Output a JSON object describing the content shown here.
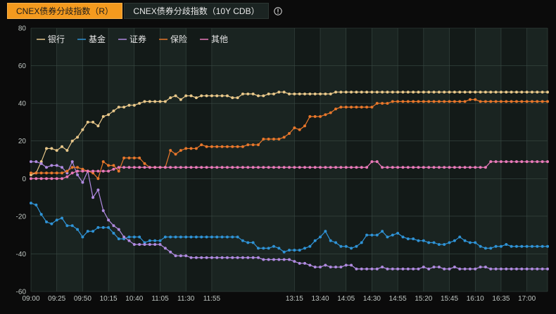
{
  "tabs": [
    {
      "label": "CNEX债券分歧指数（R）",
      "active": true
    },
    {
      "label": "CNEX债券分歧指数（10Y CDB）",
      "active": false
    }
  ],
  "info_icon": "info-circle-icon",
  "chart_data": {
    "type": "line",
    "title": "",
    "xlabel": "",
    "ylabel": "",
    "ylim": [
      -60,
      80
    ],
    "yticks": [
      80,
      60,
      40,
      20,
      0,
      -20,
      -40,
      -60
    ],
    "x_start": "09:00",
    "x_end": "17:20",
    "x_interval_minutes": 5,
    "xticks": [
      "09:00",
      "09:25",
      "09:50",
      "10:15",
      "10:40",
      "11:05",
      "11:30",
      "11:55",
      "13:15",
      "13:40",
      "14:05",
      "14:30",
      "14:55",
      "15:20",
      "15:45",
      "16:10",
      "16:35",
      "17:00"
    ],
    "grid": true,
    "legend_position": "top-left",
    "series": [
      {
        "name": "银行",
        "color": "#e9c88a",
        "values": [
          2,
          3,
          9,
          16,
          16,
          15,
          17,
          15,
          20,
          22,
          26,
          30,
          30,
          28,
          33,
          34,
          36,
          38,
          38,
          39,
          39,
          40,
          41,
          41,
          41,
          41,
          41,
          43,
          44,
          42,
          44,
          44,
          43,
          44,
          44,
          44,
          44,
          44,
          44,
          43,
          43,
          45,
          45,
          45,
          44,
          44,
          45,
          45,
          46,
          46,
          45,
          45,
          45,
          45,
          45,
          45,
          45,
          45,
          45,
          46,
          46,
          46,
          46,
          46,
          46,
          46,
          46,
          46,
          46,
          46,
          46,
          46,
          46,
          46,
          46,
          46,
          46,
          46,
          46,
          46,
          46,
          46,
          46,
          46,
          46,
          46,
          46,
          46,
          46,
          46,
          46,
          46,
          46,
          46,
          46,
          46,
          46,
          46,
          46,
          46,
          46
        ]
      },
      {
        "name": "基金",
        "color": "#2f93d6",
        "values": [
          -13,
          -14,
          -19,
          -23,
          -24,
          -22,
          -21,
          -25,
          -25,
          -27,
          -31,
          -28,
          -28,
          -26,
          -26,
          -26,
          -29,
          -32,
          -32,
          -31,
          -31,
          -31,
          -34,
          -33,
          -33,
          -33,
          -31,
          -31,
          -31,
          -31,
          -31,
          -31,
          -31,
          -31,
          -31,
          -31,
          -31,
          -31,
          -31,
          -31,
          -31,
          -33,
          -34,
          -34,
          -37,
          -37,
          -37,
          -36,
          -37,
          -39,
          -38,
          -38,
          -38,
          -37,
          -36,
          -33,
          -31,
          -28,
          -33,
          -34,
          -36,
          -36,
          -37,
          -36,
          -34,
          -30,
          -30,
          -30,
          -28,
          -31,
          -30,
          -29,
          -31,
          -32,
          -32,
          -33,
          -33,
          -34,
          -34,
          -35,
          -35,
          -34,
          -33,
          -31,
          -33,
          -34,
          -34,
          -36,
          -37,
          -37,
          -36,
          -36,
          -35,
          -36,
          -36,
          -36,
          -36,
          -36,
          -36,
          -36,
          -36
        ]
      },
      {
        "name": "证券",
        "color": "#b08ae0",
        "values": [
          9,
          9,
          8,
          6,
          7,
          7,
          6,
          3,
          9,
          2,
          -2,
          4,
          -10,
          -6,
          -17,
          -22,
          -25,
          -27,
          -31,
          -33,
          -35,
          -35,
          -35,
          -35,
          -35,
          -35,
          -37,
          -39,
          -41,
          -41,
          -41,
          -42,
          -42,
          -42,
          -42,
          -42,
          -42,
          -42,
          -42,
          -42,
          -42,
          -42,
          -42,
          -42,
          -42,
          -43,
          -43,
          -43,
          -43,
          -43,
          -43,
          -44,
          -45,
          -45,
          -46,
          -47,
          -47,
          -46,
          -47,
          -47,
          -47,
          -46,
          -46,
          -48,
          -48,
          -48,
          -48,
          -48,
          -47,
          -48,
          -48,
          -48,
          -48,
          -48,
          -48,
          -48,
          -47,
          -48,
          -47,
          -47,
          -48,
          -48,
          -47,
          -48,
          -48,
          -48,
          -48,
          -47,
          -47,
          -48,
          -48,
          -48,
          -48,
          -48,
          -48,
          -48,
          -48,
          -48,
          -48,
          -48,
          -48
        ]
      },
      {
        "name": "保险",
        "color": "#e8772b",
        "values": [
          3,
          3,
          3,
          3,
          3,
          3,
          3,
          4,
          6,
          6,
          5,
          4,
          3,
          0,
          9,
          7,
          7,
          4,
          11,
          11,
          11,
          11,
          8,
          6,
          6,
          6,
          6,
          15,
          13,
          15,
          16,
          16,
          16,
          18,
          17,
          17,
          17,
          17,
          17,
          17,
          17,
          17,
          18,
          18,
          18,
          21,
          21,
          21,
          21,
          22,
          24,
          27,
          26,
          28,
          33,
          33,
          33,
          34,
          35,
          37,
          38,
          38,
          38,
          38,
          38,
          38,
          38,
          40,
          40,
          40,
          41,
          41,
          41,
          41,
          41,
          41,
          41,
          41,
          41,
          41,
          41,
          41,
          41,
          41,
          41,
          42,
          42,
          41,
          41,
          41,
          41,
          41,
          41,
          41,
          41,
          41,
          41,
          41,
          41,
          41,
          41
        ]
      },
      {
        "name": "其他",
        "color": "#e879b8",
        "values": [
          0,
          0,
          0,
          0,
          0,
          0,
          0,
          1,
          3,
          4,
          4,
          4,
          4,
          4,
          4,
          4,
          5,
          6,
          6,
          6,
          6,
          6,
          6,
          6,
          6,
          6,
          6,
          6,
          6,
          6,
          6,
          6,
          6,
          6,
          6,
          6,
          6,
          6,
          6,
          6,
          6,
          6,
          6,
          6,
          6,
          6,
          6,
          6,
          6,
          6,
          6,
          6,
          6,
          6,
          6,
          6,
          6,
          6,
          6,
          6,
          6,
          6,
          6,
          6,
          6,
          6,
          9,
          9,
          6,
          6,
          6,
          6,
          6,
          6,
          6,
          6,
          6,
          6,
          6,
          6,
          6,
          6,
          6,
          6,
          6,
          6,
          6,
          6,
          6,
          9,
          9,
          9,
          9,
          9,
          9,
          9,
          9,
          9,
          9,
          9,
          9
        ]
      }
    ]
  }
}
